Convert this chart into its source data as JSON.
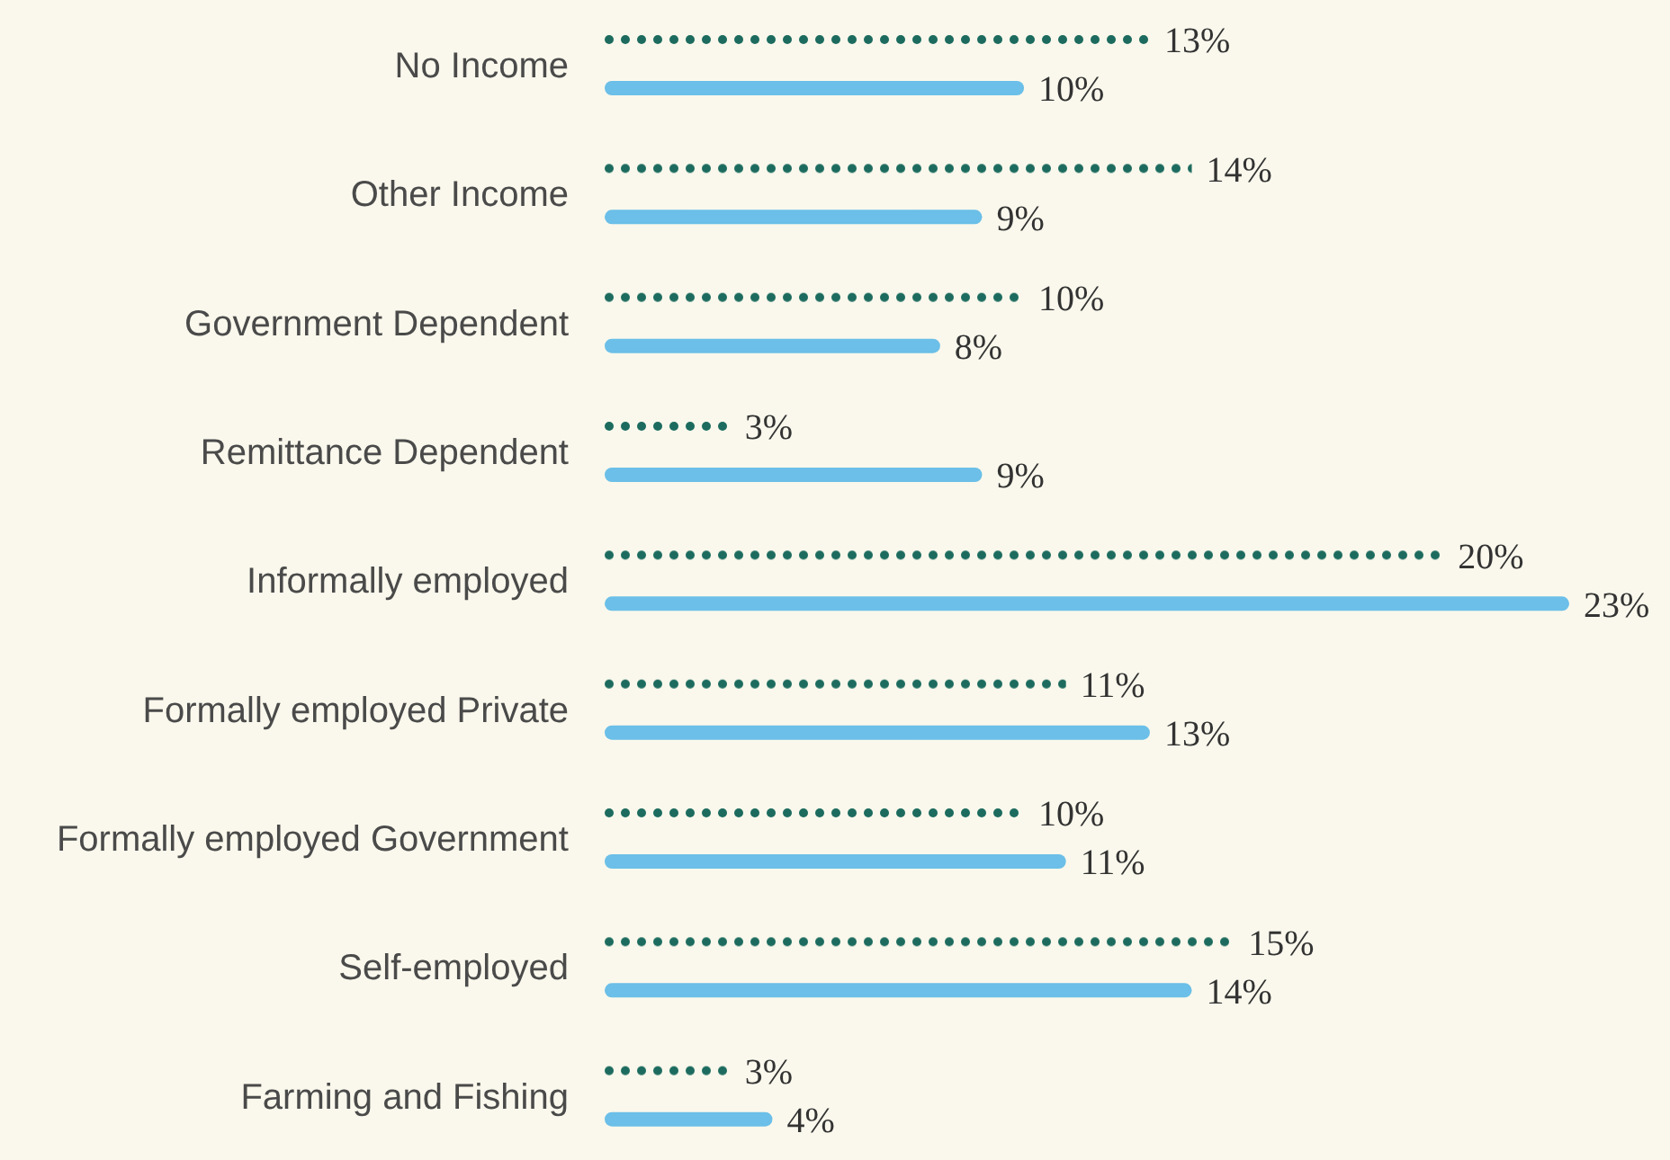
{
  "chart_data": {
    "type": "bar",
    "orientation": "horizontal",
    "categories": [
      "No Income",
      "Other Income",
      "Government Dependent",
      "Remittance Dependent",
      "Informally employed",
      "Formally employed Private",
      "Formally employed Government",
      "Self-employed",
      "Farming and Fishing"
    ],
    "series": [
      {
        "color": "#1d6b5f",
        "line_style": "dotted",
        "values": [
          13,
          14,
          10,
          3,
          20,
          11,
          10,
          15,
          3
        ],
        "value_labels": [
          "13%",
          "14%",
          "10%",
          "3%",
          "20%",
          "11%",
          "10%",
          "15%",
          "3%"
        ]
      },
      {
        "color": "#6bbfe8",
        "line_style": "solid",
        "values": [
          10,
          9,
          8,
          9,
          23,
          13,
          11,
          14,
          4
        ],
        "value_labels": [
          "10%",
          "9%",
          "8%",
          "9%",
          "23%",
          "13%",
          "11%",
          "14%",
          "4%"
        ]
      }
    ],
    "grid": false,
    "legend": false
  }
}
